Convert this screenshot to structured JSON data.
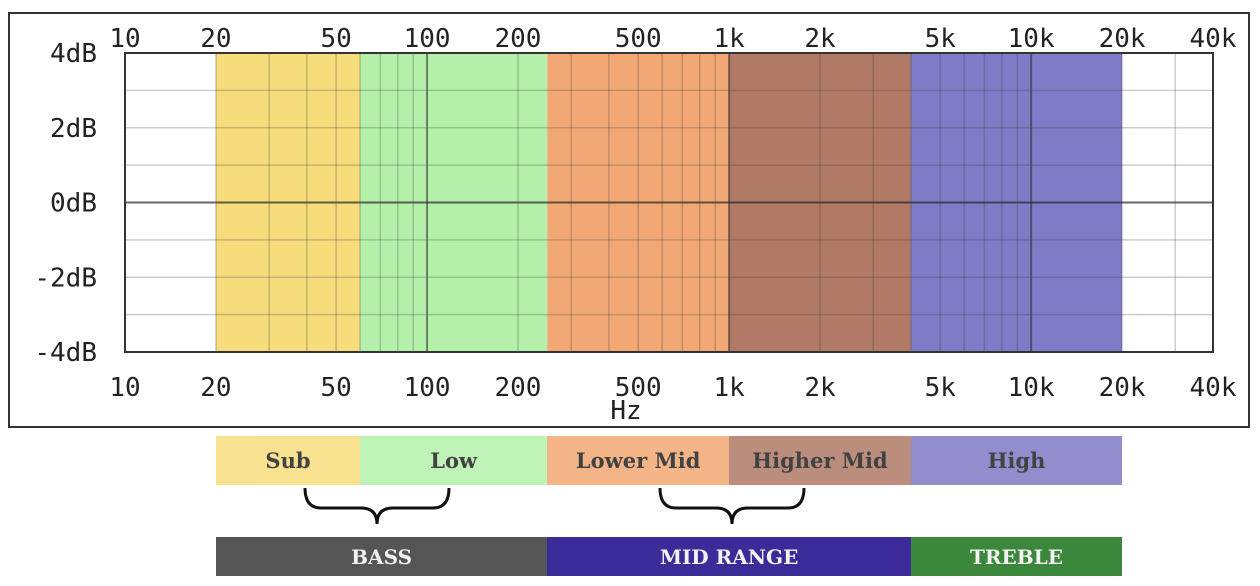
{
  "chart_data": {
    "type": "area",
    "title": "",
    "xlabel": "Hz",
    "ylabel": "",
    "xscale": "log",
    "xlim": [
      10,
      40000
    ],
    "ylim": [
      -4,
      4
    ],
    "grid": true,
    "x_ticks": [
      10,
      20,
      50,
      100,
      200,
      500,
      1000,
      2000,
      5000,
      10000,
      20000,
      40000
    ],
    "x_tick_labels": [
      "10",
      "20",
      "50",
      "100",
      "200",
      "500",
      "1k",
      "2k",
      "5k",
      "10k",
      "20k",
      "40k"
    ],
    "y_ticks": [
      4,
      2,
      0,
      -2,
      -4
    ],
    "y_tick_labels": [
      "4dB",
      "2dB",
      "0dB",
      "-2dB",
      "-4dB"
    ],
    "bands": [
      {
        "name": "Sub",
        "from": 20,
        "to": 60,
        "color": "#f7dc7c"
      },
      {
        "name": "Low",
        "from": 60,
        "to": 250,
        "color": "#b4f0aa"
      },
      {
        "name": "Lower Mid",
        "from": 250,
        "to": 1000,
        "color": "#f1a874"
      },
      {
        "name": "Higher Mid",
        "from": 1000,
        "to": 4000,
        "color": "#b07a66"
      },
      {
        "name": "High",
        "from": 4000,
        "to": 20000,
        "color": "#7f7bc6"
      }
    ],
    "groups": [
      {
        "name": "BASS",
        "from": 20,
        "to": 250,
        "color": "#555555"
      },
      {
        "name": "MID RANGE",
        "from": 250,
        "to": 4000,
        "color": "#3a2b98"
      },
      {
        "name": "TREBLE",
        "from": 4000,
        "to": 20000,
        "color": "#3b873b"
      }
    ]
  }
}
